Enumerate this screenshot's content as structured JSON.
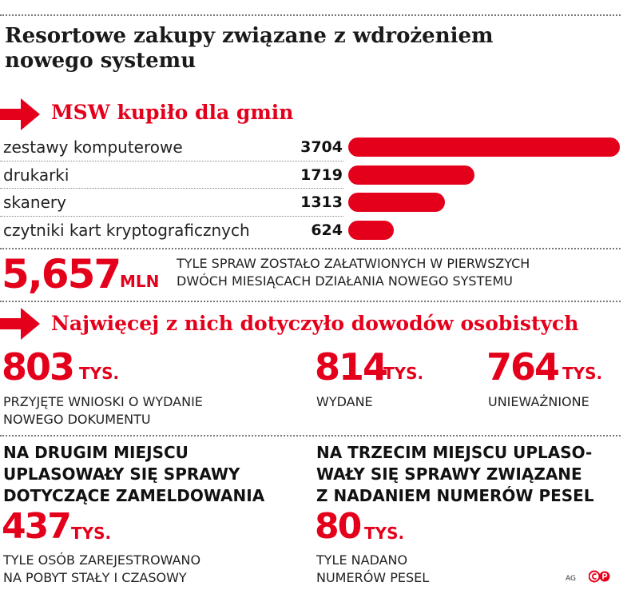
{
  "title_line1": "Resortowe zakupy związane z wdrożeniem",
  "title_line2": "nowego systemu",
  "section1": "MSW kupiło dla gmin",
  "section2": "Najwięcej z nich dotyczyło dowodów osobistych",
  "chart_data": {
    "type": "bar",
    "orientation": "horizontal",
    "categories": [
      "zestawy komputerowe",
      "drukarki",
      "skanery",
      "czytniki kart kryptograficznych"
    ],
    "values": [
      3704,
      1719,
      1313,
      624
    ],
    "value_labels": [
      "3704",
      "1719",
      "1313",
      "624"
    ],
    "bar_color": "#e4001b"
  },
  "stat_main": {
    "value": "5,657",
    "unit": "MLN",
    "text1": "TYLE SPRAW ZOSTAŁO ZAŁATWIONYCH W PIERWSZYCH",
    "text2": "DWÓCH MIESIĄCACH DZIAŁANIA NOWEGO SYSTEMU"
  },
  "stat_a": {
    "value": "803",
    "unit": "TYS.",
    "text1": "PRZYJĘTE WNIOSKI O WYDANIE",
    "text2": "NOWEGO DOKUMENTU"
  },
  "stat_b": {
    "value": "814",
    "unit": "TYS.",
    "text1": "WYDANE"
  },
  "stat_c": {
    "value": "764",
    "unit": "TYS.",
    "text1": "UNIEWAŻNIONE"
  },
  "block_left": {
    "h1": "NA DRUGIM MIEJSCU",
    "h2": "UPLASOWAŁY SIĘ SPRAWY",
    "h3": "DOTYCZĄCE ZAMELDOWANIA",
    "value": "437",
    "unit": "TYS.",
    "text1": "TYLE OSÓB ZAREJESTROWANO",
    "text2": "NA POBYT STAŁY I CZASOWY"
  },
  "block_right": {
    "h1": "NA TRZECIM MIEJSCU UPLASO-",
    "h2": "WAŁY SIĘ SPRAWY ZWIĄZANE",
    "h3": "Z NADANIEM NUMERÓW PESEL",
    "value": "80",
    "unit": "TYS.",
    "text1": "TYLE NADANO",
    "text2": "NUMERÓW PESEL"
  },
  "credit": "AG",
  "accent_color": "#e4001b"
}
